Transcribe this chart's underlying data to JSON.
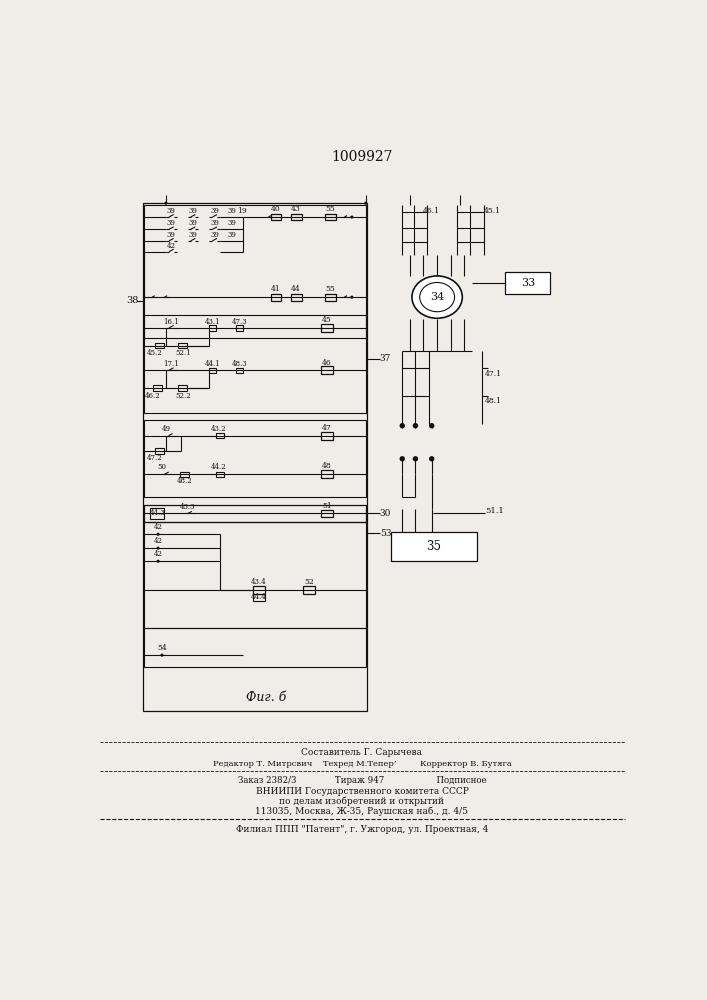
{
  "title": "1009927",
  "fig_label": "Фиг. б",
  "footer_lines": [
    "Составитель Г. Сарычева",
    "Редактор Т. Митрсвич    Техред М.Тепер’         Корректор В. Бутяга",
    "Заказ 2382/3              Тираж 947                   Подписное",
    "ВНИИПИ Государственного комитета СССР",
    "по делам изобретений и открытий",
    "113035, Москва, Ж-35, Раушская наб., д. 4/5",
    "Филиал ППП \"Патент\", г. Ужгород, ул. Проектная, 4"
  ],
  "bg_color": "#f0ede8",
  "line_color": "#111111"
}
